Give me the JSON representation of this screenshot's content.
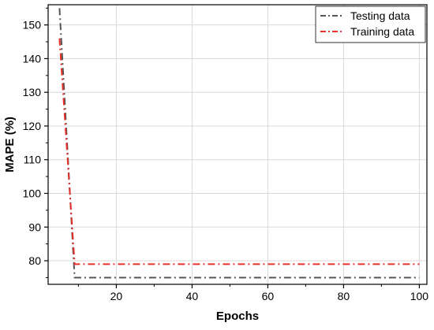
{
  "chart_data": {
    "type": "line",
    "title": "",
    "xlabel": "Epochs",
    "ylabel": "MAPE (%)",
    "xlim": [
      2,
      102
    ],
    "ylim": [
      73,
      156
    ],
    "x_ticks": [
      20,
      40,
      60,
      80,
      100
    ],
    "y_ticks": [
      80,
      90,
      100,
      110,
      120,
      130,
      140,
      150
    ],
    "x_tick_labels": [
      "20",
      "40",
      "60",
      "80",
      "100"
    ],
    "y_tick_labels": [
      "80",
      "90",
      "100",
      "110",
      "120",
      "130",
      "140",
      "150"
    ],
    "grid": true,
    "legend": "top-right",
    "series": [
      {
        "name": "Testing data",
        "color": "#555555",
        "dash": "dash-dot",
        "x": [
          5,
          9,
          100
        ],
        "y": [
          155,
          75,
          75
        ]
      },
      {
        "name": "Training data",
        "color": "#e8302a",
        "dash": "dash-dot",
        "x": [
          5,
          9,
          100
        ],
        "y": [
          146,
          79,
          79
        ]
      }
    ]
  }
}
